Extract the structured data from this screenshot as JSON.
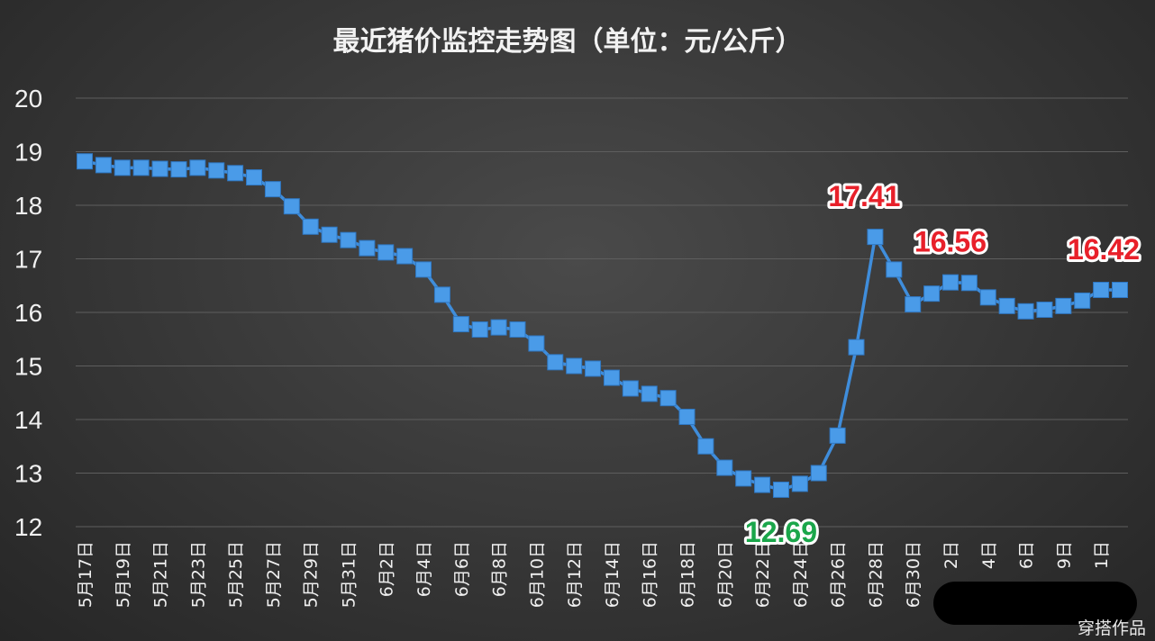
{
  "chart_data": {
    "type": "line",
    "title": "最近猪价监控走势图（单位：元/公斤）",
    "ylim": [
      12,
      20
    ],
    "yticks": [
      12,
      13,
      14,
      15,
      16,
      17,
      18,
      19,
      20
    ],
    "grid": true,
    "legend": "none",
    "colors": {
      "line": "#3f8ddb",
      "marker": "#4a9be8",
      "callout_high": "#e8202a",
      "callout_low": "#1aa64a",
      "grid": "#5e5e5e"
    },
    "tick_labels": [
      "5月17日",
      "5月19日",
      "5月21日",
      "5月23日",
      "5月25日",
      "5月27日",
      "5月29日",
      "5月31日",
      "6月2日",
      "6月4日",
      "6月6日",
      "6月8日",
      "6月10日",
      "6月12日",
      "6月14日",
      "6月16日",
      "6月18日",
      "6月20日",
      "6月22日",
      "6月24日",
      "6月26日",
      "6月28日",
      "6月30日",
      "2日",
      "4日",
      "6日",
      "9日",
      "1日"
    ],
    "values": [
      18.82,
      18.75,
      18.7,
      18.7,
      18.68,
      18.67,
      18.7,
      18.65,
      18.6,
      18.52,
      18.3,
      17.98,
      17.6,
      17.45,
      17.35,
      17.2,
      17.12,
      17.05,
      16.8,
      16.33,
      15.78,
      15.68,
      15.72,
      15.68,
      15.42,
      15.07,
      15.0,
      14.95,
      14.78,
      14.58,
      14.48,
      14.4,
      14.05,
      13.5,
      13.1,
      12.9,
      12.78,
      12.69,
      12.8,
      13.0,
      13.7,
      15.35,
      17.41,
      16.8,
      16.15,
      16.35,
      16.56,
      16.55,
      16.28,
      16.12,
      16.02,
      16.05,
      16.12,
      16.22,
      16.42,
      16.42
    ],
    "annotations": [
      {
        "text": "17.41",
        "index": 42,
        "kind": "high"
      },
      {
        "text": "16.56",
        "index": 46,
        "kind": "high"
      },
      {
        "text": "16.42",
        "index": 55,
        "kind": "high"
      },
      {
        "text": "12.69",
        "index": 37,
        "kind": "low"
      }
    ]
  },
  "watermark": "穿搭作品"
}
